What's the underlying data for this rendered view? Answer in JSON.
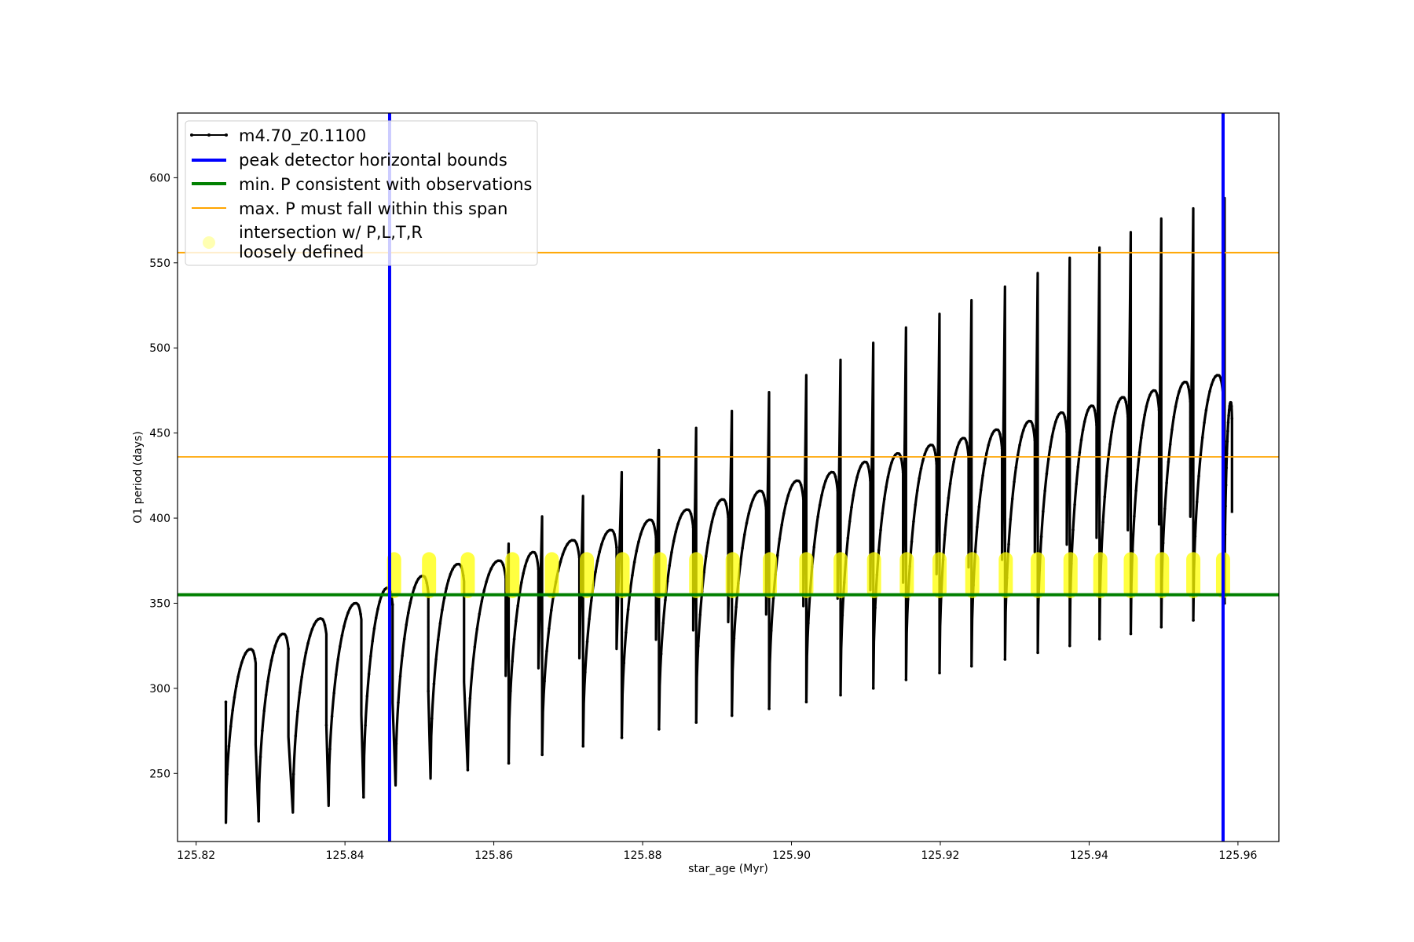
{
  "chart_data": {
    "type": "line",
    "title": "",
    "xlabel": "star_age (Myr)",
    "ylabel": "O1 period (days)",
    "xlim": [
      125.8175,
      125.9655
    ],
    "ylim": [
      210,
      638
    ],
    "x_ticks": [
      125.82,
      125.84,
      125.86,
      125.88,
      125.9,
      125.92,
      125.94,
      125.96
    ],
    "x_tick_labels": [
      "125.82",
      "125.84",
      "125.86",
      "125.88",
      "125.90",
      "125.92",
      "125.94",
      "125.96"
    ],
    "y_ticks": [
      250,
      300,
      350,
      400,
      450,
      500,
      550,
      600
    ],
    "y_tick_labels": [
      "250",
      "300",
      "350",
      "400",
      "450",
      "500",
      "550",
      "600"
    ],
    "grid": false,
    "legend_position": "top-left",
    "legend": [
      {
        "label": "m4.70_z0.1100",
        "style": "line-marker",
        "color": "#000000"
      },
      {
        "label": "peak detector horizontal bounds",
        "style": "line",
        "color": "#0000ff"
      },
      {
        "label": "min. P consistent with observations",
        "style": "line",
        "color": "#008000"
      },
      {
        "label": "max. P must fall within this span",
        "style": "line",
        "color": "#ffa500"
      },
      {
        "label": "intersection w/ P,L,T,R",
        "label_line2": "loosely defined",
        "style": "marker",
        "color": "#ffff00"
      }
    ],
    "series": [
      {
        "name": "m4.70_z0.1100",
        "color": "#000000",
        "pulse_cycles": [
          {
            "start": 125.824,
            "end": 125.828,
            "min": 221,
            "max": 323,
            "spike": 292
          },
          {
            "start": 125.8284,
            "end": 125.8324,
            "min": 222,
            "max": 332,
            "spike": 0
          },
          {
            "start": 125.833,
            "end": 125.8375,
            "min": 227,
            "max": 341,
            "spike": 0
          },
          {
            "start": 125.8378,
            "end": 125.8422,
            "min": 231,
            "max": 350,
            "spike": 0
          },
          {
            "start": 125.8425,
            "end": 125.8464,
            "min": 236,
            "max": 359,
            "spike": 0
          },
          {
            "start": 125.8468,
            "end": 125.8512,
            "min": 243,
            "max": 366,
            "spike": 0
          },
          {
            "start": 125.8515,
            "end": 125.856,
            "min": 247,
            "max": 373,
            "spike": 0
          },
          {
            "start": 125.8565,
            "end": 125.8616,
            "min": 252,
            "max": 375,
            "spike": 0
          },
          {
            "start": 125.862,
            "end": 125.866,
            "min": 256,
            "max": 380,
            "spike": 385
          },
          {
            "start": 125.8665,
            "end": 125.8715,
            "min": 261,
            "max": 387,
            "spike": 401
          },
          {
            "start": 125.872,
            "end": 125.8765,
            "min": 266,
            "max": 393,
            "spike": 413
          },
          {
            "start": 125.8772,
            "end": 125.8818,
            "min": 271,
            "max": 399,
            "spike": 427
          },
          {
            "start": 125.8822,
            "end": 125.8868,
            "min": 276,
            "max": 405,
            "spike": 440
          },
          {
            "start": 125.8872,
            "end": 125.8915,
            "min": 280,
            "max": 411,
            "spike": 453
          },
          {
            "start": 125.892,
            "end": 125.8966,
            "min": 284,
            "max": 416,
            "spike": 463
          },
          {
            "start": 125.897,
            "end": 125.9016,
            "min": 288,
            "max": 422,
            "spike": 474
          },
          {
            "start": 125.902,
            "end": 125.9062,
            "min": 292,
            "max": 427,
            "spike": 484
          },
          {
            "start": 125.9066,
            "end": 125.9106,
            "min": 296,
            "max": 433,
            "spike": 493
          },
          {
            "start": 125.911,
            "end": 125.915,
            "min": 300,
            "max": 438,
            "spike": 503
          },
          {
            "start": 125.9154,
            "end": 125.9195,
            "min": 305,
            "max": 443,
            "spike": 512
          },
          {
            "start": 125.9199,
            "end": 125.9238,
            "min": 309,
            "max": 447,
            "spike": 520
          },
          {
            "start": 125.9242,
            "end": 125.9283,
            "min": 313,
            "max": 452,
            "spike": 528
          },
          {
            "start": 125.9287,
            "end": 125.9327,
            "min": 317,
            "max": 457,
            "spike": 536
          },
          {
            "start": 125.9331,
            "end": 125.937,
            "min": 321,
            "max": 462,
            "spike": 544
          },
          {
            "start": 125.9374,
            "end": 125.941,
            "min": 325,
            "max": 466,
            "spike": 553
          },
          {
            "start": 125.9414,
            "end": 125.9452,
            "min": 329,
            "max": 471,
            "spike": 559
          },
          {
            "start": 125.9456,
            "end": 125.9494,
            "min": 332,
            "max": 475,
            "spike": 568
          },
          {
            "start": 125.9497,
            "end": 125.9536,
            "min": 336,
            "max": 480,
            "spike": 576
          },
          {
            "start": 125.954,
            "end": 125.958,
            "min": 340,
            "max": 484,
            "spike": 582
          },
          {
            "start": 125.9582,
            "end": 125.9592,
            "min": 350,
            "max": 468,
            "spike": 588
          }
        ]
      },
      {
        "name": "peak detector horizontal bounds",
        "color": "#0000ff",
        "x": [
          125.846,
          125.958
        ]
      },
      {
        "name": "min. P consistent with observations",
        "color": "#008000",
        "y": [
          355
        ]
      },
      {
        "name": "max. P must fall within this span",
        "color": "#ffa500",
        "y": [
          436,
          556
        ]
      },
      {
        "name": "intersection w/ P,L,T,R",
        "color": "#ffff00",
        "band": [
          353,
          380
        ],
        "x_centers": [
          125.8466,
          125.8513,
          125.8565,
          125.8625,
          125.8678,
          125.8725,
          125.8773,
          125.8823,
          125.8872,
          125.8921,
          125.8971,
          125.902,
          125.9066,
          125.9111,
          125.9155,
          125.9199,
          125.9243,
          125.9288,
          125.9331,
          125.9375,
          125.9415,
          125.9456,
          125.9498,
          125.954,
          125.958
        ]
      }
    ]
  }
}
